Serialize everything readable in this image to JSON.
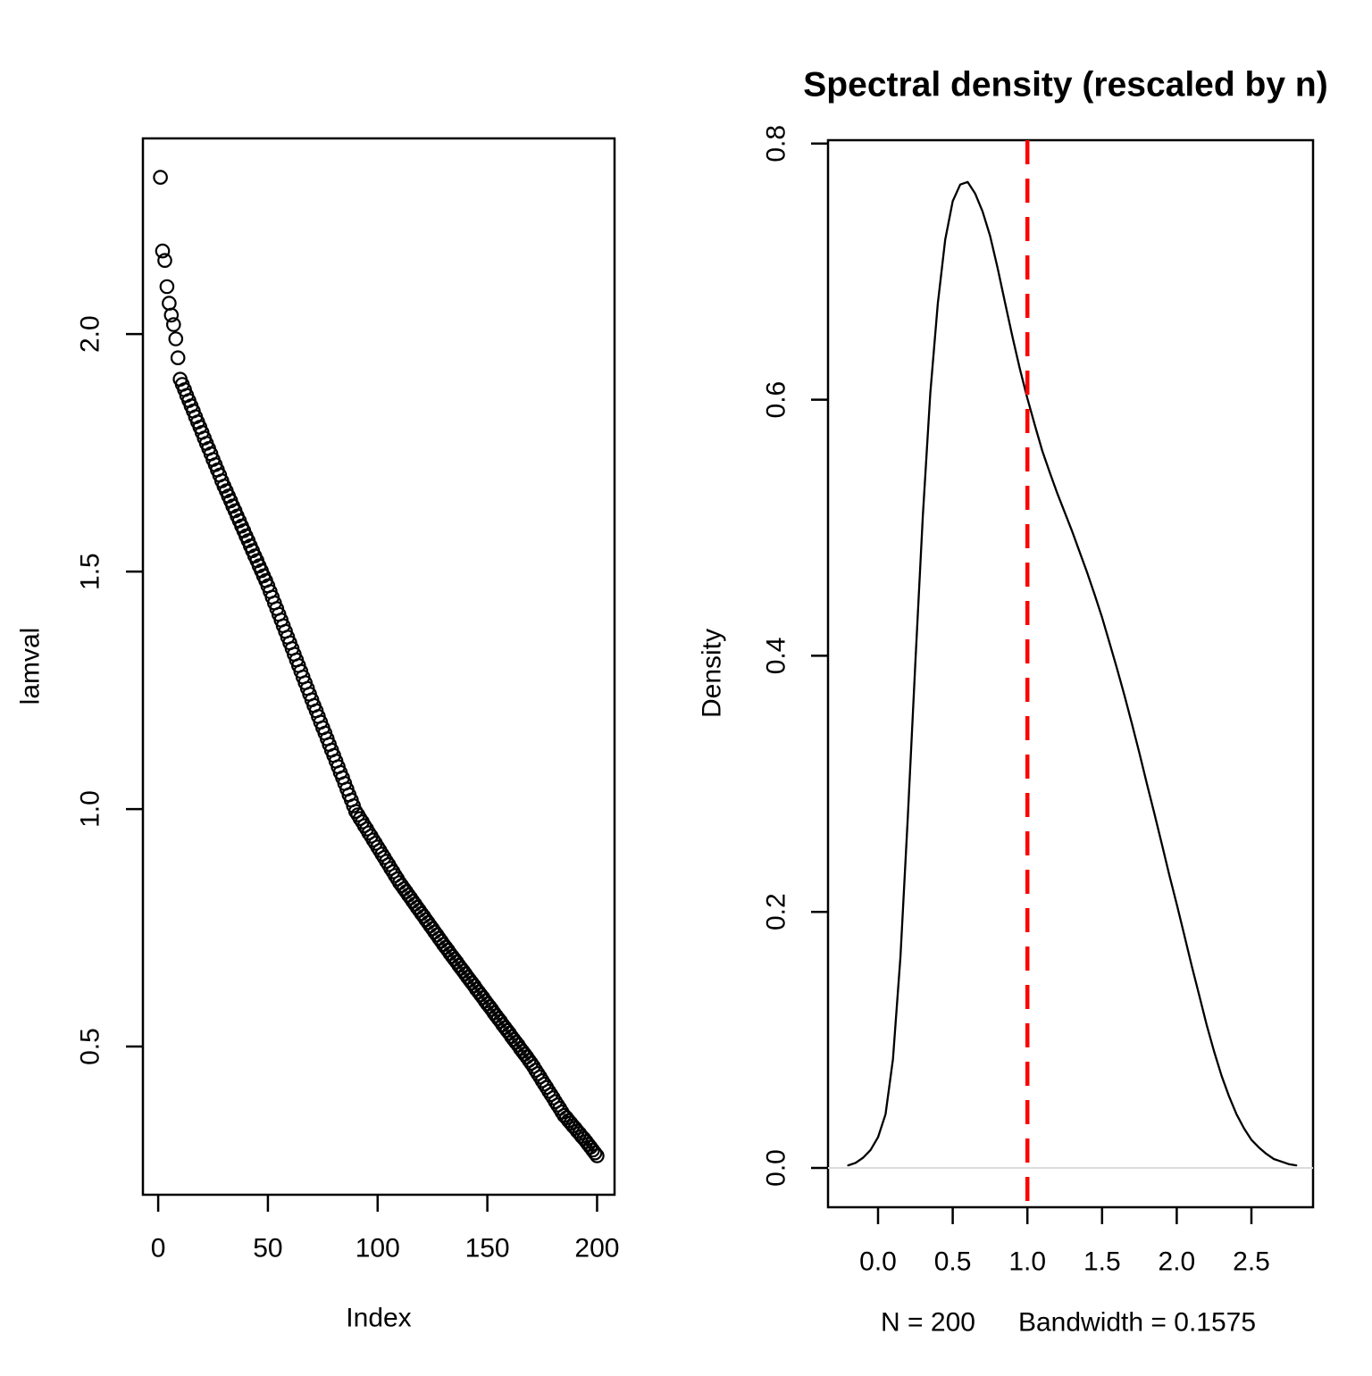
{
  "figure": {
    "background": "#ffffff",
    "foreground": "#000000",
    "left_plot": {
      "xlabel": "Index",
      "ylabel": "lamval",
      "x_tick_labels": [
        "0",
        "50",
        "100",
        "150",
        "200"
      ],
      "y_tick_labels": [
        "0.5",
        "1.0",
        "1.5",
        "2.0"
      ]
    },
    "right_plot": {
      "title": "Spectral density (rescaled by n)",
      "xlabel_left": "N = 200",
      "xlabel_right": "Bandwidth = 0.1575",
      "ylabel": "Density",
      "x_tick_labels": [
        "0.0",
        "0.5",
        "1.0",
        "1.5",
        "2.0",
        "2.5"
      ],
      "y_tick_labels": [
        "0.0",
        "0.2",
        "0.4",
        "0.6",
        "0.8"
      ],
      "vline_color": "#ff0000",
      "curve_color": "#000000",
      "baseline_color": "#dcdcdc"
    }
  },
  "chart_data": [
    {
      "type": "scatter",
      "title": "",
      "xlabel": "Index",
      "ylabel": "lamval",
      "marker": "open-circle",
      "x_description": "index 1..200 (eigenvalue rank)",
      "x_ticks": [
        0,
        50,
        100,
        150,
        200
      ],
      "y_ticks": [
        0.5,
        1.0,
        1.5,
        2.0
      ],
      "xlim": [
        -6.96,
        207.96
      ],
      "ylim": [
        0.188,
        2.412
      ],
      "values": [
        2.33,
        2.175,
        2.155,
        2.1,
        2.065,
        2.04,
        2.02,
        1.99,
        1.95,
        1.905,
        1.894,
        1.883,
        1.871,
        1.86,
        1.849,
        1.838,
        1.826,
        1.815,
        1.804,
        1.793,
        1.781,
        1.77,
        1.759,
        1.748,
        1.736,
        1.725,
        1.714,
        1.703,
        1.691,
        1.68,
        1.67,
        1.659,
        1.649,
        1.638,
        1.628,
        1.617,
        1.607,
        1.596,
        1.586,
        1.575,
        1.565,
        1.554,
        1.544,
        1.533,
        1.523,
        1.512,
        1.502,
        1.491,
        1.481,
        1.47,
        1.458,
        1.446,
        1.434,
        1.422,
        1.41,
        1.398,
        1.386,
        1.374,
        1.362,
        1.35,
        1.338,
        1.326,
        1.314,
        1.302,
        1.29,
        1.278,
        1.266,
        1.254,
        1.242,
        1.23,
        1.218,
        1.207,
        1.195,
        1.183,
        1.171,
        1.16,
        1.148,
        1.136,
        1.124,
        1.113,
        1.101,
        1.089,
        1.077,
        1.066,
        1.054,
        1.042,
        1.03,
        1.019,
        1.007,
        0.995,
        0.988,
        0.98,
        0.973,
        0.965,
        0.958,
        0.95,
        0.943,
        0.935,
        0.928,
        0.92,
        0.913,
        0.905,
        0.898,
        0.89,
        0.883,
        0.875,
        0.868,
        0.86,
        0.853,
        0.845,
        0.839,
        0.832,
        0.826,
        0.819,
        0.813,
        0.806,
        0.8,
        0.793,
        0.787,
        0.78,
        0.774,
        0.767,
        0.761,
        0.754,
        0.748,
        0.741,
        0.735,
        0.728,
        0.722,
        0.715,
        0.709,
        0.703,
        0.696,
        0.69,
        0.684,
        0.678,
        0.671,
        0.665,
        0.659,
        0.653,
        0.646,
        0.64,
        0.634,
        0.628,
        0.621,
        0.615,
        0.609,
        0.603,
        0.596,
        0.59,
        0.584,
        0.578,
        0.571,
        0.565,
        0.559,
        0.553,
        0.546,
        0.54,
        0.534,
        0.528,
        0.521,
        0.515,
        0.509,
        0.503,
        0.496,
        0.49,
        0.484,
        0.478,
        0.471,
        0.465,
        0.458,
        0.45,
        0.443,
        0.436,
        0.428,
        0.421,
        0.414,
        0.406,
        0.399,
        0.392,
        0.384,
        0.377,
        0.37,
        0.362,
        0.355,
        0.35,
        0.344,
        0.339,
        0.333,
        0.328,
        0.322,
        0.317,
        0.311,
        0.306,
        0.3,
        0.294,
        0.288,
        0.282,
        0.276,
        0.27
      ]
    },
    {
      "type": "line",
      "title": "Spectral density (rescaled by n)",
      "xlabel": "N = 200   Bandwidth = 0.1575",
      "ylabel": "Density",
      "n": 200,
      "bandwidth": 0.1575,
      "x_ticks": [
        0.0,
        0.5,
        1.0,
        1.5,
        2.0,
        2.5
      ],
      "y_ticks": [
        0.0,
        0.2,
        0.4,
        0.6,
        0.8
      ],
      "xlim": [
        -0.325,
        2.925
      ],
      "ylim": [
        -0.031,
        0.801
      ],
      "grid": false,
      "vline": {
        "x": 1.0,
        "color": "#ff0000",
        "style": "dashed"
      },
      "baseline_y": 0.0,
      "points": [
        [
          -0.2,
          0.002
        ],
        [
          -0.15,
          0.004
        ],
        [
          -0.1,
          0.008
        ],
        [
          -0.05,
          0.014
        ],
        [
          0.0,
          0.024
        ],
        [
          0.05,
          0.042
        ],
        [
          0.1,
          0.085
        ],
        [
          0.15,
          0.165
        ],
        [
          0.2,
          0.275
        ],
        [
          0.25,
          0.395
        ],
        [
          0.3,
          0.51
        ],
        [
          0.35,
          0.605
        ],
        [
          0.4,
          0.675
        ],
        [
          0.45,
          0.725
        ],
        [
          0.5,
          0.755
        ],
        [
          0.55,
          0.768
        ],
        [
          0.6,
          0.77
        ],
        [
          0.65,
          0.761
        ],
        [
          0.7,
          0.747
        ],
        [
          0.75,
          0.728
        ],
        [
          0.8,
          0.703
        ],
        [
          0.85,
          0.676
        ],
        [
          0.9,
          0.649
        ],
        [
          0.95,
          0.624
        ],
        [
          1.0,
          0.601
        ],
        [
          1.05,
          0.58
        ],
        [
          1.1,
          0.56
        ],
        [
          1.15,
          0.543
        ],
        [
          1.2,
          0.527
        ],
        [
          1.25,
          0.512
        ],
        [
          1.3,
          0.497
        ],
        [
          1.35,
          0.481
        ],
        [
          1.4,
          0.465
        ],
        [
          1.45,
          0.448
        ],
        [
          1.5,
          0.43
        ],
        [
          1.55,
          0.41
        ],
        [
          1.6,
          0.39
        ],
        [
          1.65,
          0.369
        ],
        [
          1.7,
          0.347
        ],
        [
          1.75,
          0.324
        ],
        [
          1.8,
          0.3
        ],
        [
          1.85,
          0.277
        ],
        [
          1.9,
          0.253
        ],
        [
          1.95,
          0.229
        ],
        [
          2.0,
          0.206
        ],
        [
          2.05,
          0.182
        ],
        [
          2.1,
          0.158
        ],
        [
          2.15,
          0.135
        ],
        [
          2.2,
          0.112
        ],
        [
          2.25,
          0.091
        ],
        [
          2.3,
          0.072
        ],
        [
          2.35,
          0.056
        ],
        [
          2.4,
          0.042
        ],
        [
          2.45,
          0.031
        ],
        [
          2.5,
          0.022
        ],
        [
          2.55,
          0.016
        ],
        [
          2.6,
          0.011
        ],
        [
          2.65,
          0.007
        ],
        [
          2.7,
          0.005
        ],
        [
          2.75,
          0.003
        ],
        [
          2.8,
          0.002
        ]
      ]
    }
  ]
}
